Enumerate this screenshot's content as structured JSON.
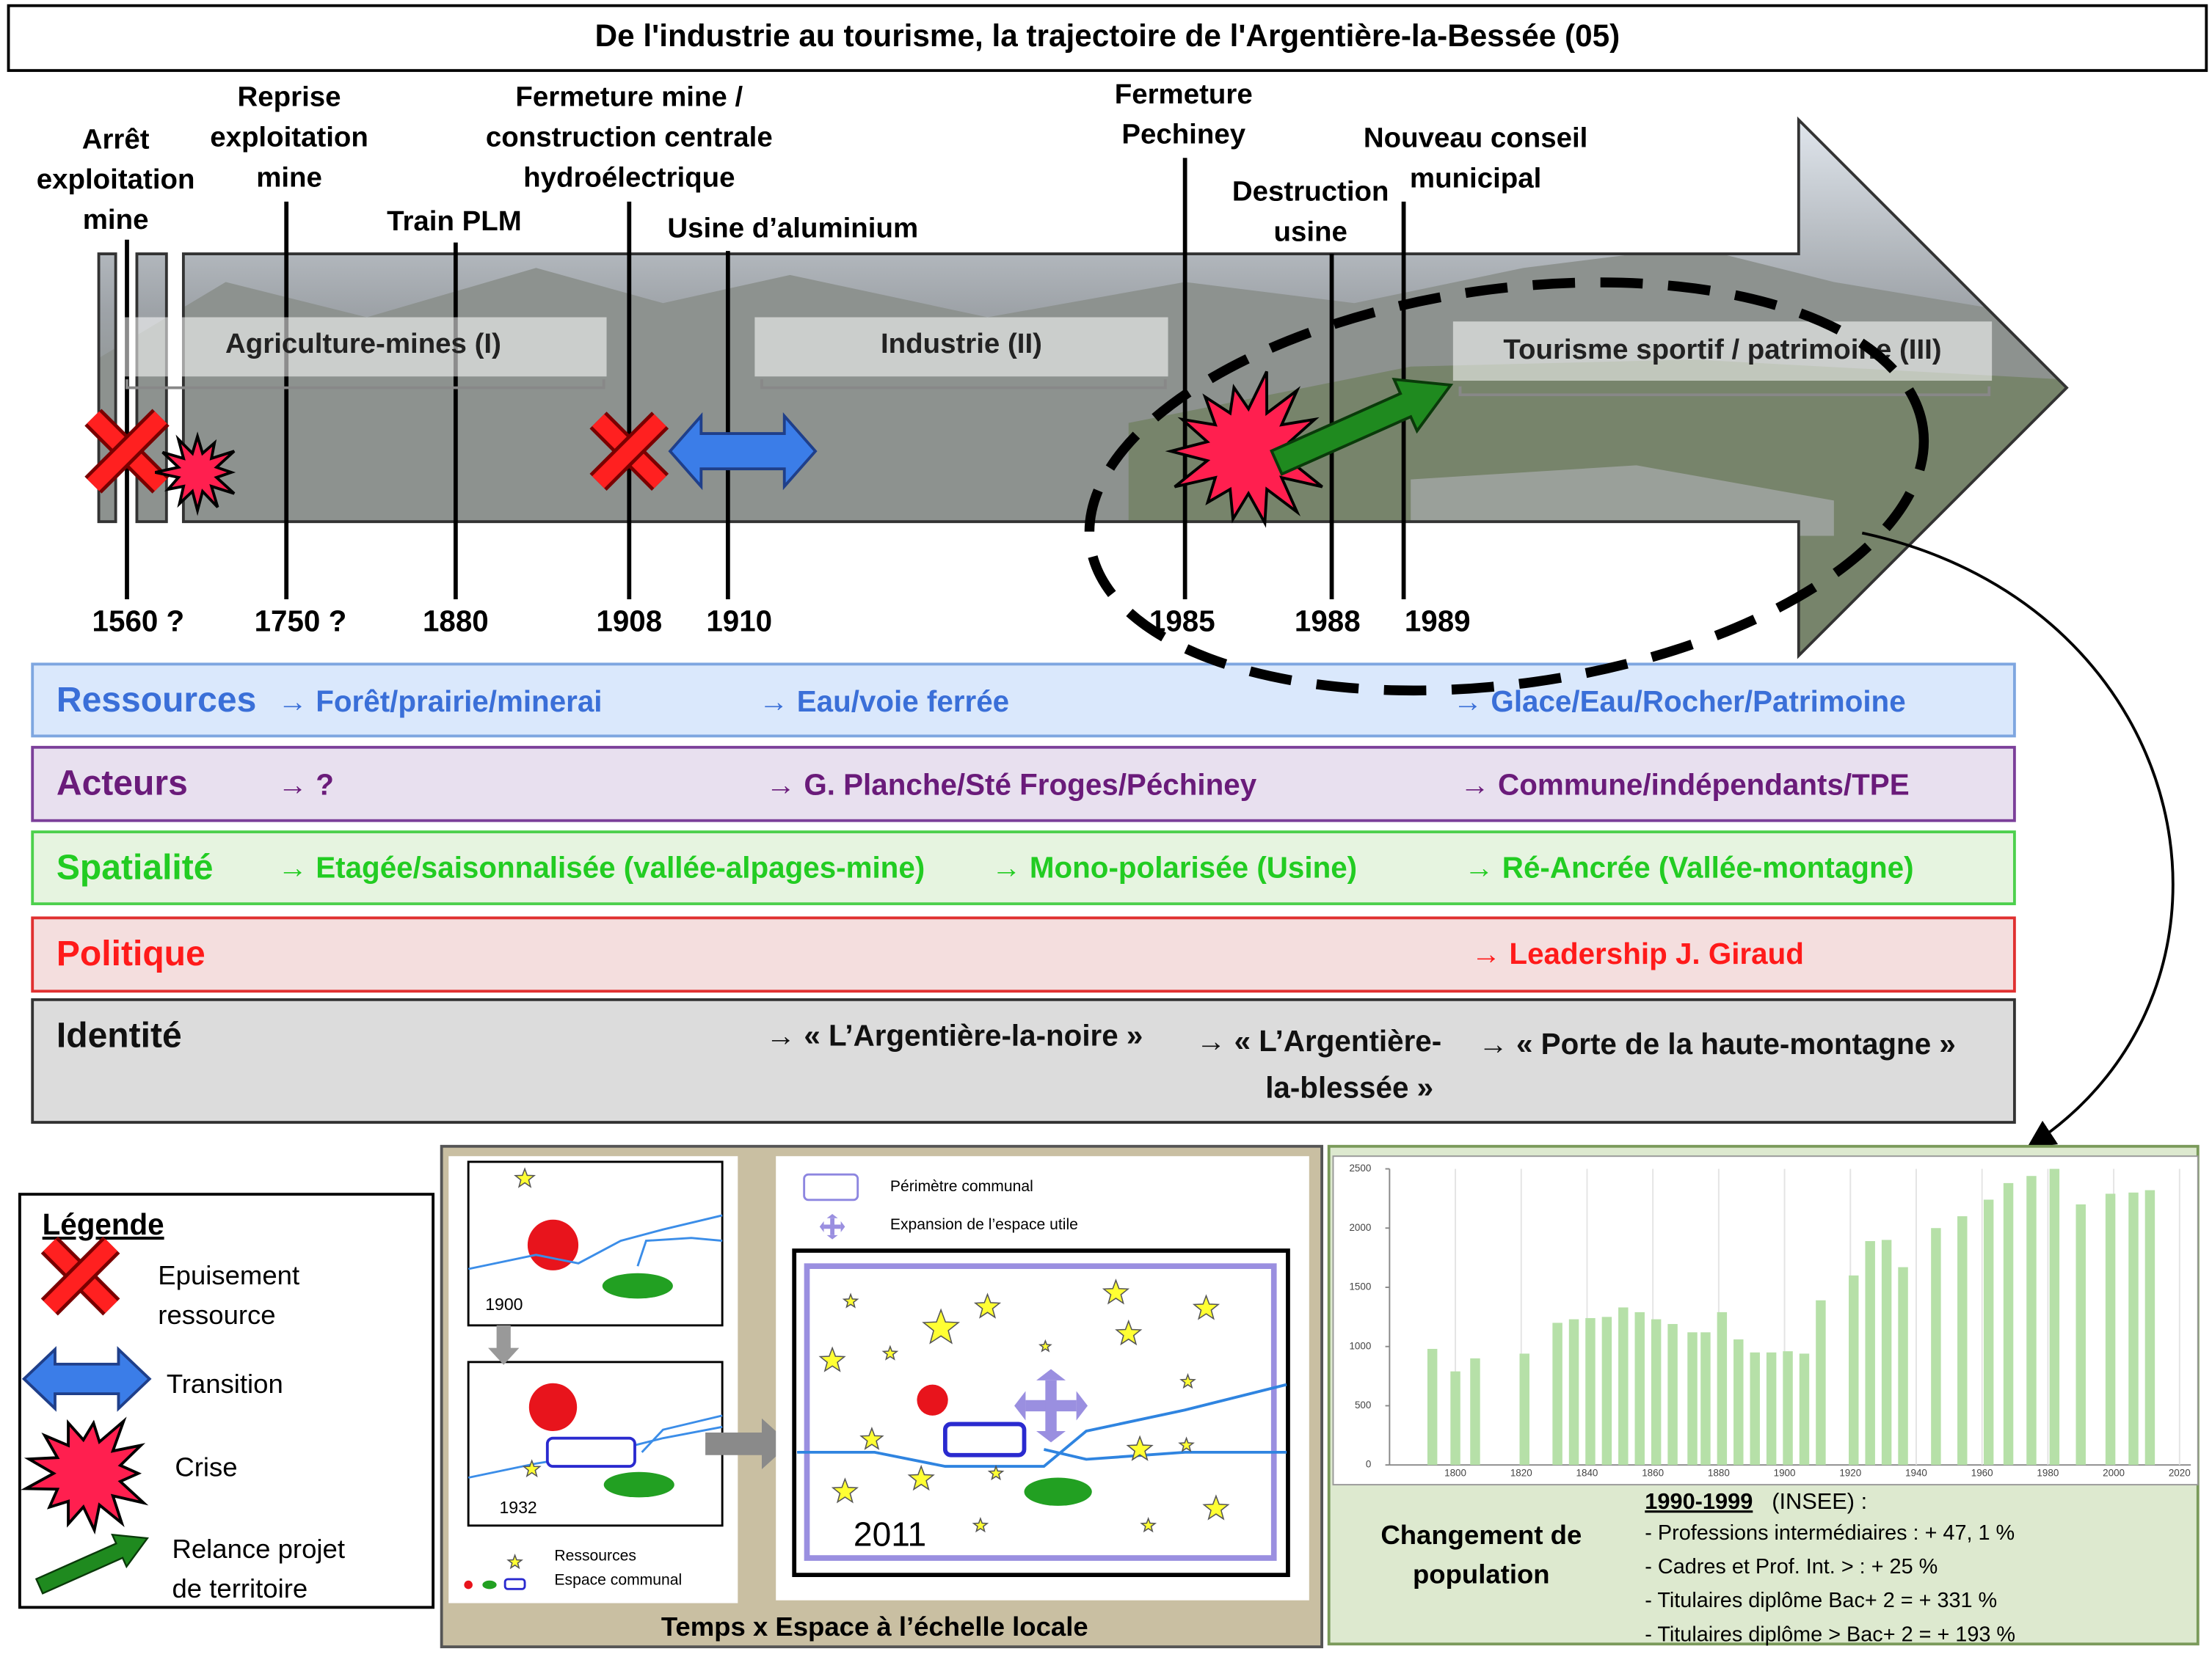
{
  "title": "De l'industrie au tourisme, la trajectoire de l'Argentière-la-Bessée (05)",
  "timeline": {
    "events": [
      {
        "label": [
          "Arrêt",
          "exploitation",
          "mine"
        ],
        "date": "1560 ?"
      },
      {
        "label": [
          "Reprise",
          "exploitation",
          "mine"
        ],
        "date": "1750 ?"
      },
      {
        "label": [
          "Train PLM"
        ],
        "date": "1880"
      },
      {
        "label": [
          "Fermeture mine /",
          "construction centrale",
          "hydroélectrique"
        ],
        "date": "1908"
      },
      {
        "label": [
          "Usine d’aluminium"
        ],
        "date": "1910"
      },
      {
        "label": [
          "Fermeture",
          "Pechiney"
        ],
        "date": "1985"
      },
      {
        "label": [
          "Destruction",
          "usine"
        ],
        "date": "1988"
      },
      {
        "label": [
          "Nouveau conseil",
          "municipal"
        ],
        "date": "1989"
      }
    ],
    "phases": [
      "Agriculture-mines (I)",
      "Industrie (II)",
      "Tourisme sportif / patrimoine (III)"
    ]
  },
  "rows": [
    {
      "name": "Ressources",
      "items": [
        [
          "→ Forêt/prairie/minerai"
        ],
        [
          "→ Eau/voie ferrée"
        ],
        [
          "→ Glace/Eau/Rocher/Patrimoine"
        ]
      ]
    },
    {
      "name": "Acteurs",
      "items": [
        [
          "→  ?"
        ],
        [
          "→ G. Planche/Sté Froges/Péchiney"
        ],
        [
          "→ Commune/indépendants/TPE"
        ]
      ]
    },
    {
      "name": "Spatialité",
      "items": [
        [
          "→ Etagée/saisonnalisée (vallée-alpages-mine)"
        ],
        [
          "→ Mono-polarisée (Usine)"
        ],
        [
          "→ Ré-Ancrée (Vallée-montagne)"
        ]
      ]
    },
    {
      "name": "Politique",
      "items": [
        [
          "→ Leadership  J. Giraud"
        ]
      ]
    },
    {
      "name": "Identité",
      "items": [
        [
          "→ « L’Argentière-la-noire »"
        ],
        [
          "→ « L’Argentière-",
          "la-blessée »"
        ],
        [
          "→ « Porte de la haute-montagne »"
        ]
      ]
    }
  ],
  "legend": {
    "title": "Légende",
    "items": [
      [
        "Epuisement",
        "ressource"
      ],
      [
        "Transition"
      ],
      [
        "Crise"
      ],
      [
        "Relance projet",
        "de territoire"
      ]
    ]
  },
  "local_maps": {
    "caption": "Temps x Espace à l’échelle locale",
    "years": [
      "1900",
      "1932",
      "2011"
    ],
    "key": [
      "Ressources",
      "Espace communal"
    ],
    "map_key": [
      "Périmètre communal",
      "Expansion de l’espace utile"
    ]
  },
  "population": {
    "caption": [
      "Changement de",
      "population"
    ],
    "period": "1990-1999",
    "source": "(INSEE) :",
    "stats": [
      "- Professions intermédiaires : + 47, 1 %",
      "- Cadres et Prof. Int. > : + 25 %",
      "- Titulaires diplôme Bac+ 2 = + 331 %",
      "- Titulaires diplôme > Bac+ 2 = + 193 %"
    ]
  },
  "chart_data": {
    "type": "bar",
    "color": "#b6e0a8",
    "grid": "x",
    "x": [
      1793,
      1800,
      1806,
      1821,
      1831,
      1836,
      1841,
      1846,
      1851,
      1856,
      1861,
      1866,
      1872,
      1876,
      1881,
      1886,
      1891,
      1896,
      1901,
      1906,
      1911,
      1921,
      1926,
      1931,
      1936,
      1946,
      1954,
      1962,
      1968,
      1975,
      1982,
      1990,
      1999,
      2006,
      2011
    ],
    "values": [
      980,
      790,
      900,
      940,
      1200,
      1230,
      1240,
      1250,
      1330,
      1290,
      1230,
      1190,
      1120,
      1120,
      1290,
      1060,
      950,
      950,
      960,
      940,
      1390,
      1600,
      1890,
      1900,
      1670,
      2000,
      2100,
      2240,
      2380,
      2440,
      2500,
      2200,
      2290,
      2300,
      2320
    ],
    "xlim": [
      1780,
      2020
    ],
    "xticks": [
      1800,
      1820,
      1840,
      1860,
      1880,
      1900,
      1920,
      1940,
      1960,
      1980,
      2000,
      2020
    ],
    "ylim": [
      0,
      2500
    ],
    "yticks": [
      0,
      500,
      1000,
      1500,
      2000,
      2500
    ]
  }
}
